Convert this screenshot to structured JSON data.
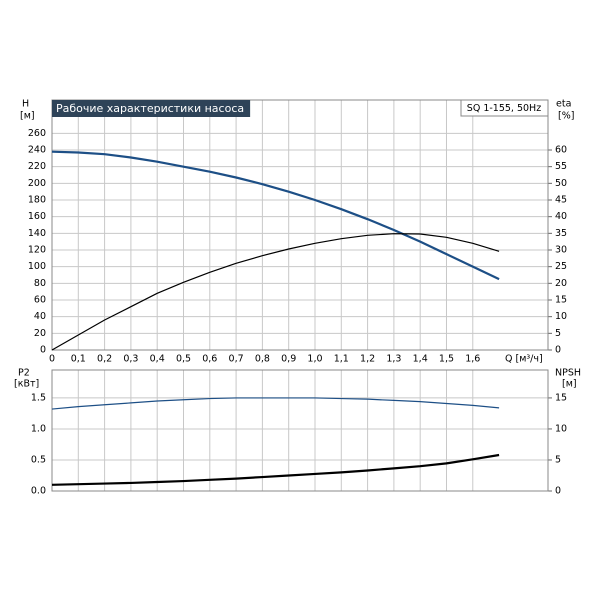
{
  "chart_data": [
    {
      "type": "line",
      "title": "Рабочие характеристики насоса",
      "subtitle": "SQ 1-155, 50Hz",
      "y_label": "H",
      "y_unit": "[м]",
      "y2_label": "eta",
      "y2_unit": "[%]",
      "x_label": "Q [м³/ч]",
      "xlim": [
        0,
        1.886
      ],
      "ylim": [
        0,
        300
      ],
      "y2lim": [
        0,
        75
      ],
      "xticks": [
        0,
        {
          "value": 0.1,
          "label": "0,1"
        },
        {
          "value": 0.2,
          "label": "0,2"
        },
        {
          "value": 0.3,
          "label": "0,3"
        },
        {
          "value": 0.4,
          "label": "0,4"
        },
        {
          "value": 0.5,
          "label": "0,5"
        },
        {
          "value": 0.6,
          "label": "0,6"
        },
        {
          "value": 0.7,
          "label": "0,7"
        },
        {
          "value": 0.8,
          "label": "0,8"
        },
        {
          "value": 0.9,
          "label": "0,9"
        },
        {
          "value": 1.0,
          "label": "1,0"
        },
        {
          "value": 1.1,
          "label": "1,1"
        },
        {
          "value": 1.2,
          "label": "1,2"
        },
        {
          "value": 1.3,
          "label": "1,3"
        },
        {
          "value": 1.4,
          "label": "1,4"
        },
        {
          "value": 1.5,
          "label": "1,5"
        },
        {
          "value": 1.6,
          "label": "1,6"
        }
      ],
      "yticks": [
        0,
        20,
        40,
        60,
        80,
        100,
        120,
        140,
        160,
        180,
        200,
        220,
        240,
        260
      ],
      "y2ticks": [
        0,
        5,
        10,
        15,
        20,
        25,
        30,
        35,
        40,
        45,
        50,
        55,
        60
      ],
      "grid": true,
      "x": [
        0,
        0.1,
        0.2,
        0.3,
        0.4,
        0.5,
        0.6,
        0.7,
        0.8,
        0.9,
        1.0,
        1.1,
        1.2,
        1.3,
        1.4,
        1.5,
        1.6,
        1.7
      ],
      "series": [
        {
          "color": "#1d4f86",
          "width": 2.2,
          "values": [
            238,
            237,
            235,
            231,
            226,
            220,
            214,
            207,
            199,
            190,
            180,
            169,
            157,
            144,
            130,
            115,
            100,
            85
          ]
        },
        {
          "color": "#000000",
          "width": 1.2,
          "axis": "y2",
          "values": [
            0,
            4.5,
            9,
            13,
            17,
            20.3,
            23.3,
            26,
            28.3,
            30.3,
            32,
            33.4,
            34.4,
            34.9,
            34.8,
            33.8,
            32,
            29.6
          ]
        }
      ]
    },
    {
      "type": "line",
      "y_label": "P2",
      "y_unit": "[кВт]",
      "y2_label": "NPSH",
      "y2_unit": "[м]",
      "xlim": [
        0,
        1.886
      ],
      "ylim": [
        0,
        1.95
      ],
      "y2lim": [
        0,
        19.5
      ],
      "yticks": [
        {
          "value": 0,
          "label": "0.0"
        },
        {
          "value": 0.5,
          "label": "0.5"
        },
        {
          "value": 1.0,
          "label": "1.0"
        },
        {
          "value": 1.5,
          "label": "1.5"
        }
      ],
      "y2ticks": [
        0,
        5,
        10,
        15
      ],
      "grid": true,
      "x": [
        0,
        0.1,
        0.2,
        0.3,
        0.4,
        0.5,
        0.6,
        0.7,
        0.8,
        0.9,
        1.0,
        1.1,
        1.2,
        1.3,
        1.4,
        1.5,
        1.6,
        1.7
      ],
      "series": [
        {
          "color": "#1d4f86",
          "width": 1.2,
          "values": [
            1.32,
            1.36,
            1.39,
            1.42,
            1.45,
            1.47,
            1.49,
            1.5,
            1.5,
            1.5,
            1.5,
            1.49,
            1.48,
            1.46,
            1.44,
            1.41,
            1.38,
            1.34
          ]
        },
        {
          "color": "#000000",
          "width": 2.2,
          "axis": "y2",
          "values": [
            1.0,
            1.1,
            1.2,
            1.3,
            1.45,
            1.6,
            1.8,
            2.0,
            2.25,
            2.5,
            2.75,
            3.0,
            3.3,
            3.65,
            4.0,
            4.45,
            5.1,
            5.8
          ]
        }
      ]
    }
  ]
}
